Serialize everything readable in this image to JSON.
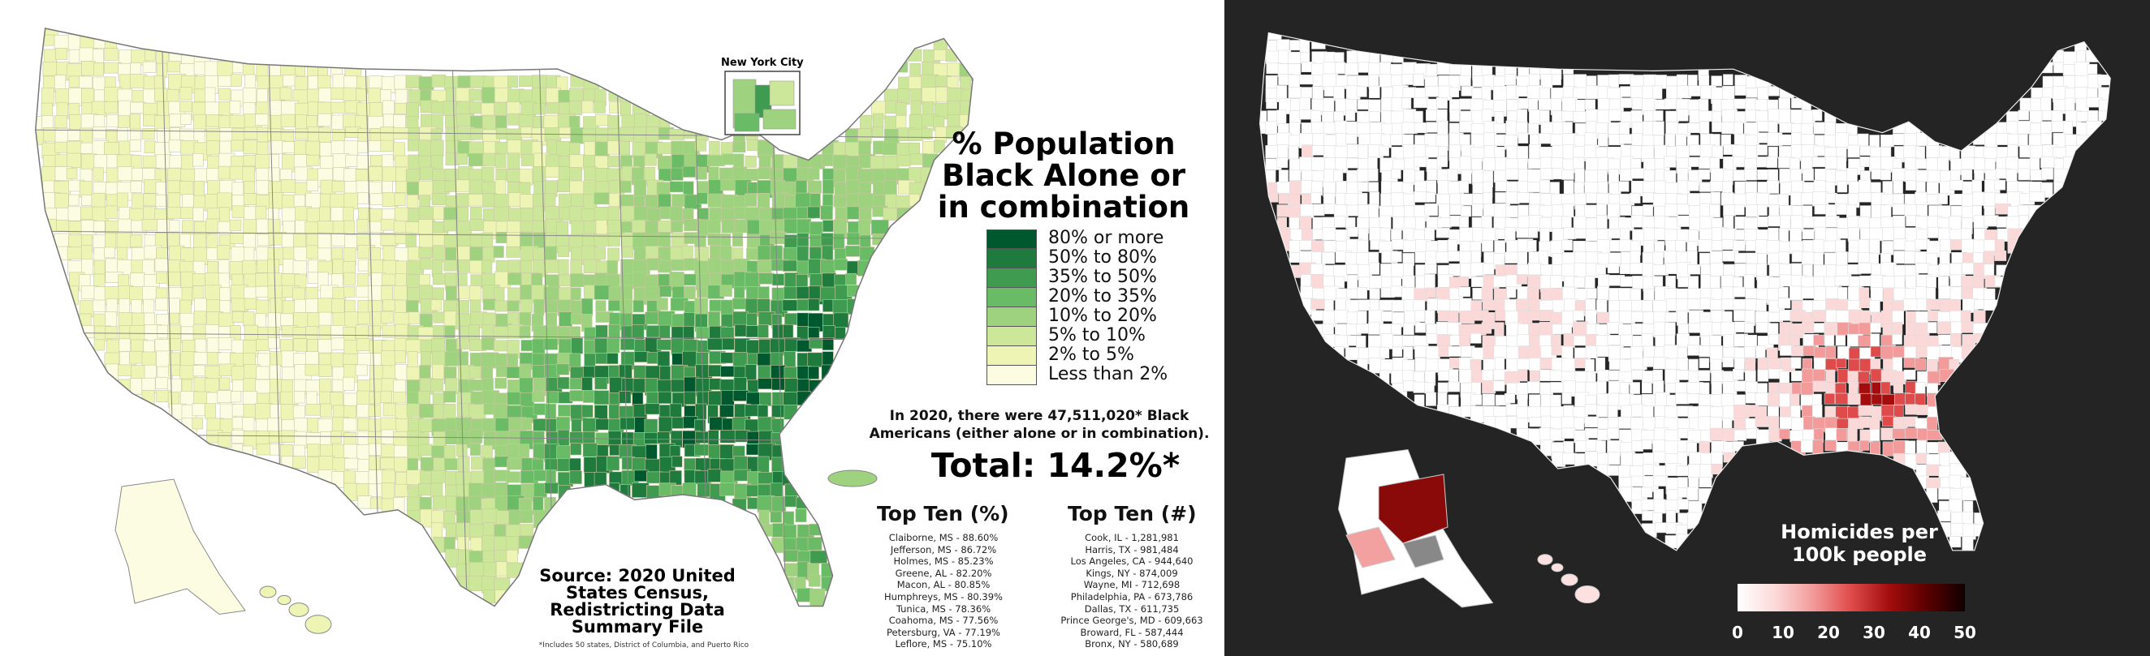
{
  "left_map": {
    "inset_label": "New York City",
    "legend": {
      "title_lines": [
        "% Population",
        "Black Alone or",
        "in combination"
      ],
      "items": [
        {
          "label": "80% or more",
          "color": "#00582e"
        },
        {
          "label": "50% to 80%",
          "color": "#1f7a3e"
        },
        {
          "label": "35% to 50%",
          "color": "#3f9b4f"
        },
        {
          "label": "20% to 35%",
          "color": "#6abb66"
        },
        {
          "label": "10% to 20%",
          "color": "#9ed27f"
        },
        {
          "label": "5% to 10%",
          "color": "#cde79a"
        },
        {
          "label": "2% to 5%",
          "color": "#eef5b4"
        },
        {
          "label": "Less than 2%",
          "color": "#fcfce3"
        }
      ]
    },
    "summary_lines": [
      "In 2020, there were 47,511,020* Black",
      "Americans (either alone or in combination)."
    ],
    "total": "Total: 14.2%*",
    "top_ten_pct": {
      "heading": "Top Ten (%)",
      "items": [
        "Claiborne, MS - 88.60%",
        "Jefferson, MS - 86.72%",
        "Holmes, MS - 85.23%",
        "Greene, AL - 82.20%",
        "Macon, AL - 80.85%",
        "Humphreys, MS - 80.39%",
        "Tunica, MS - 78.36%",
        "Coahoma, MS - 77.56%",
        "Petersburg, VA - 77.19%",
        "Leflore, MS - 75.10%"
      ]
    },
    "top_ten_num": {
      "heading": "Top Ten (#)",
      "items": [
        "Cook, IL - 1,281,981",
        "Harris, TX - 981,484",
        "Los Angeles, CA - 944,640",
        "Kings, NY - 874,009",
        "Wayne, MI - 712,698",
        "Philadelphia, PA - 673,786",
        "Dallas, TX - 611,735",
        "Prince George's, MD - 609,663",
        "Broward, FL - 587,444",
        "Bronx, NY - 580,689"
      ]
    },
    "source_lines": [
      "Source: 2020 United",
      "States Census,",
      "Redistricting Data",
      "Summary File"
    ],
    "footnote": "*Includes 50 states, District of Columbia, and Puerto Rico"
  },
  "right_map": {
    "title_lines": [
      "Homicides per",
      "100k people"
    ],
    "colorbar": {
      "ticks": [
        "0",
        "10",
        "20",
        "30",
        "40",
        "50"
      ],
      "tick_values": [
        0,
        10,
        20,
        30,
        40,
        50
      ],
      "range": [
        0,
        50
      ],
      "colors": [
        "#ffffff",
        "#fcd9d9",
        "#f39a9a",
        "#df4a4a",
        "#a30d0d",
        "#5a0000",
        "#100000"
      ]
    },
    "missing_color": "#888888"
  }
}
